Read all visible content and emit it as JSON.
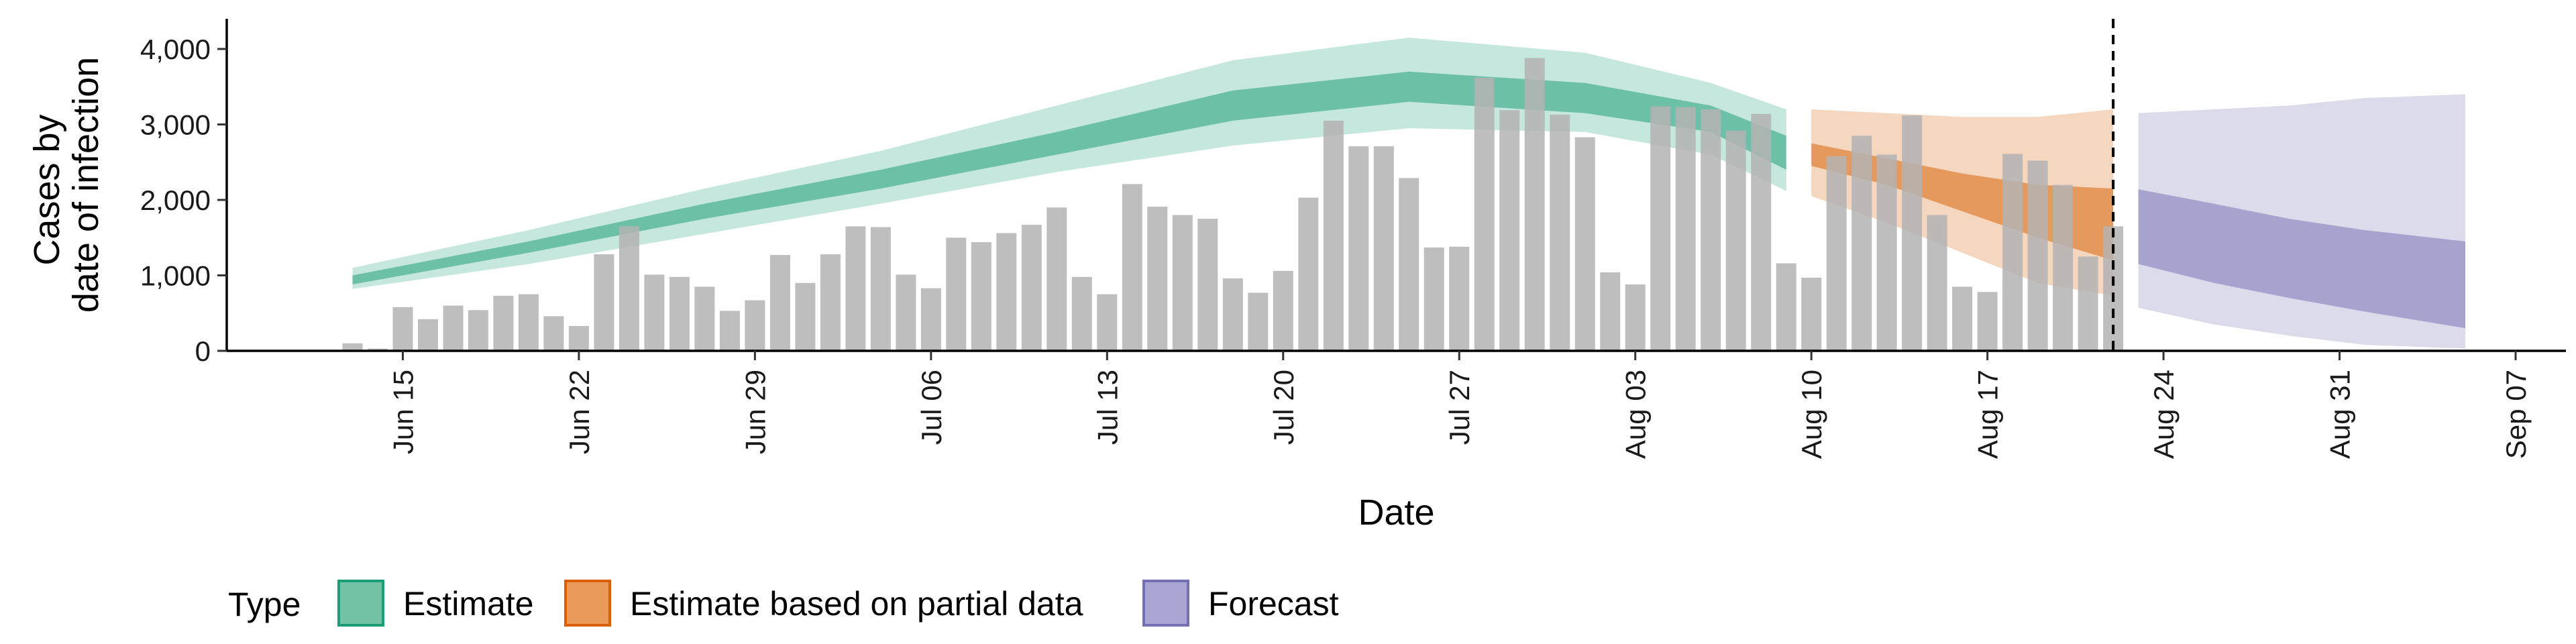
{
  "chart_data": {
    "type": "area",
    "title": "",
    "xlabel": "Date",
    "ylabel_lines": [
      "Cases by",
      "date of infection"
    ],
    "ylim": [
      0,
      4400
    ],
    "y_ticks": [
      0,
      1000,
      2000,
      3000,
      4000
    ],
    "y_tick_labels": [
      "0",
      "1,000",
      "2,000",
      "3,000",
      "4,000"
    ],
    "x_range": [
      "2020-06-08",
      "2020-09-09"
    ],
    "x_ticks": [
      "2020-06-15",
      "2020-06-22",
      "2020-06-29",
      "2020-07-06",
      "2020-07-13",
      "2020-07-20",
      "2020-07-27",
      "2020-08-03",
      "2020-08-10",
      "2020-08-17",
      "2020-08-24",
      "2020-08-31",
      "2020-09-07"
    ],
    "x_tick_labels": [
      "Jun 15",
      "Jun 22",
      "Jun 29",
      "Jul 06",
      "Jul 13",
      "Jul 20",
      "Jul 27",
      "Aug 03",
      "Aug 10",
      "Aug 17",
      "Aug 24",
      "Aug 31",
      "Sep 07"
    ],
    "cutoff_date": "2020-08-22",
    "grid": false,
    "legend_position": "bottom",
    "legend_title": "Type",
    "legend": [
      {
        "name": "Estimate",
        "fill": "#73c2a5",
        "stroke": "#1b9e77"
      },
      {
        "name": "Estimate based on partial data",
        "fill": "#eb9a5a",
        "stroke": "#d95f02"
      },
      {
        "name": "Forecast",
        "fill": "#aaa6d3",
        "stroke": "#7570b3"
      }
    ],
    "colors": {
      "estimate": "#1b9e77",
      "partial": "#d95f02",
      "forecast": "#7570b3",
      "bars": "#b3b3b3"
    },
    "reported_cases": {
      "start_date": "2020-06-13",
      "values": [
        100,
        30,
        580,
        420,
        600,
        540,
        730,
        750,
        460,
        330,
        1280,
        1650,
        1010,
        980,
        850,
        530,
        670,
        1270,
        900,
        1280,
        1650,
        1640,
        1010,
        830,
        1500,
        1440,
        1560,
        1670,
        1900,
        980,
        750,
        2210,
        1910,
        1800,
        1750,
        960,
        770,
        1060,
        2030,
        3050,
        2710,
        2710,
        2290,
        1370,
        1380,
        3620,
        3190,
        3880,
        3130,
        2830,
        1040,
        880,
        3240,
        3230,
        3200,
        2920,
        3140,
        1160,
        970,
        2580,
        2850,
        2600,
        3120,
        1800,
        850,
        780,
        2610,
        2520,
        2200,
        1250,
        1650
      ]
    },
    "estimate": {
      "dates": [
        "2020-06-13",
        "2020-06-20",
        "2020-06-27",
        "2020-07-04",
        "2020-07-11",
        "2020-07-18",
        "2020-07-25",
        "2020-08-01",
        "2020-08-06",
        "2020-08-09"
      ],
      "lower90": [
        820,
        1150,
        1550,
        1950,
        2370,
        2720,
        2950,
        2900,
        2600,
        2120
      ],
      "lower50": [
        880,
        1300,
        1750,
        2150,
        2600,
        3050,
        3300,
        3150,
        2900,
        2400
      ],
      "upper50": [
        1000,
        1450,
        1950,
        2400,
        2900,
        3450,
        3700,
        3550,
        3250,
        2850
      ],
      "upper90": [
        1100,
        1600,
        2150,
        2650,
        3250,
        3850,
        4150,
        3950,
        3550,
        3200
      ]
    },
    "partial": {
      "dates": [
        "2020-08-10",
        "2020-08-13",
        "2020-08-16",
        "2020-08-19",
        "2020-08-22"
      ],
      "lower90": [
        2050,
        1700,
        1300,
        900,
        730
      ],
      "lower50": [
        2450,
        2200,
        1850,
        1500,
        1200
      ],
      "upper50": [
        2750,
        2550,
        2350,
        2200,
        2150
      ],
      "upper90": [
        3200,
        3150,
        3100,
        3100,
        3200
      ]
    },
    "forecast": {
      "dates": [
        "2020-08-23",
        "2020-08-26",
        "2020-08-29",
        "2020-09-01",
        "2020-09-05"
      ],
      "lower90": [
        570,
        350,
        200,
        80,
        30
      ],
      "lower50": [
        1150,
        900,
        700,
        520,
        300
      ],
      "upper50": [
        2140,
        1950,
        1750,
        1600,
        1450
      ],
      "upper90": [
        3150,
        3200,
        3250,
        3350,
        3400
      ]
    }
  }
}
